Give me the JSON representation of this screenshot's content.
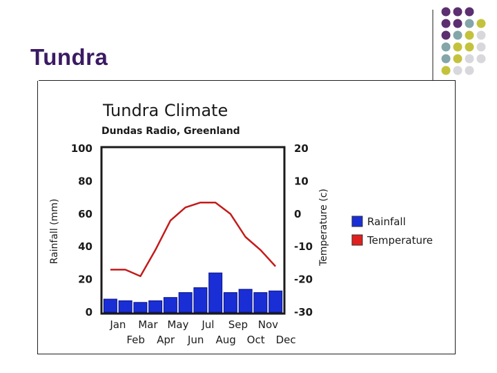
{
  "slide": {
    "title": "Tundra"
  },
  "decoration": {
    "dot_colors": [
      "#5c2f70",
      "#83a6a8",
      "#c4c23c",
      "#d8d8dc"
    ]
  },
  "chart_data": {
    "type": "bar",
    "title": "Tundra Climate",
    "subtitle": "Dundas Radio, Greenland",
    "categories": [
      "Jan",
      "Feb",
      "Mar",
      "Apr",
      "May",
      "Jun",
      "Jul",
      "Aug",
      "Sep",
      "Oct",
      "Nov",
      "Dec"
    ],
    "x_labels_top": [
      "Jan",
      "Mar",
      "May",
      "Jul",
      "Sep",
      "Nov"
    ],
    "x_labels_bottom": [
      "Feb",
      "Apr",
      "Jun",
      "Aug",
      "Oct",
      "Dec"
    ],
    "ylabel": "Rainfall (mm)",
    "ylim": [
      0,
      100
    ],
    "yticks": [
      "0",
      "20",
      "40",
      "60",
      "80",
      "100"
    ],
    "y2label": "Temperature (c)",
    "y2lim": [
      -30,
      20
    ],
    "y2ticks": [
      "-30",
      "-20",
      "-10",
      "0",
      "10",
      "20"
    ],
    "series": [
      {
        "name": "Rainfall",
        "kind": "bar",
        "axis": "left",
        "color": "#1a2ed6",
        "values": [
          8,
          7,
          6,
          7,
          9,
          12,
          15,
          24,
          12,
          14,
          12,
          13
        ]
      },
      {
        "name": "Temperature",
        "kind": "line",
        "axis": "right",
        "color": "#c41a1a",
        "values": [
          -17,
          -17,
          -19,
          -11,
          -2,
          2,
          3.5,
          3.5,
          0,
          -7,
          -11,
          -16
        ]
      }
    ],
    "legend": [
      {
        "label": "Rainfall",
        "color": "#1a2ed6"
      },
      {
        "label": "Temperature",
        "color": "#e0201e"
      }
    ],
    "legend_position": "right",
    "grid": false
  }
}
